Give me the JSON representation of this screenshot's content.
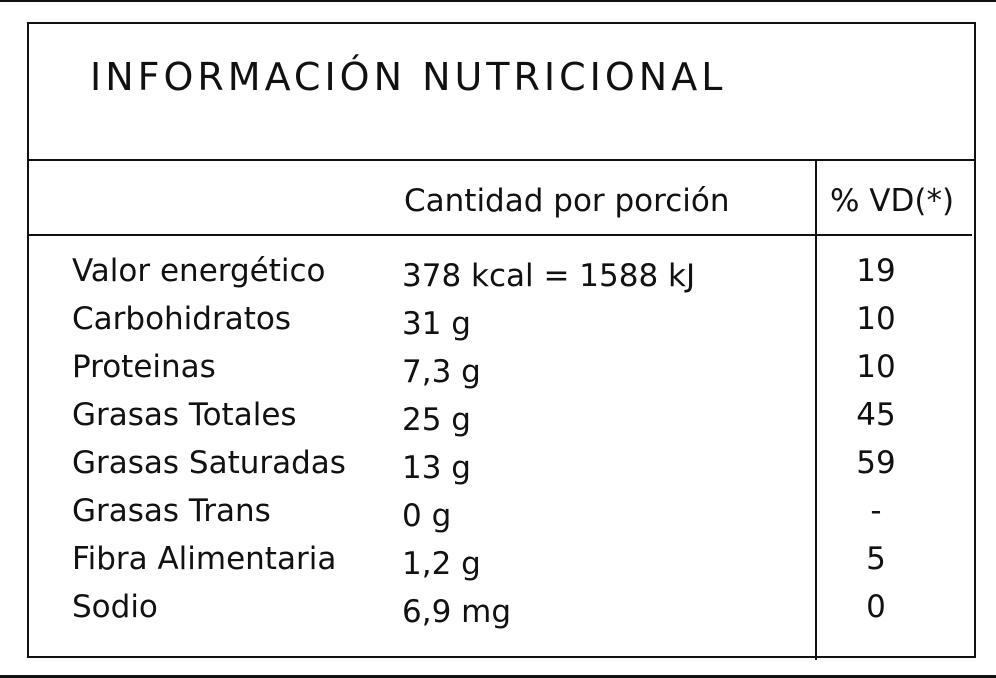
{
  "header": {
    "title": "INFORMACIÓN NUTRICIONAL"
  },
  "table": {
    "columns": {
      "amount": "Cantidad por porción",
      "dv": "% VD(*)"
    },
    "rows": [
      [
        "Valor energético",
        "378 kcal = 1588 kJ",
        "19"
      ],
      [
        "Carbohidratos",
        "31 g",
        "10"
      ],
      [
        "Proteinas",
        "7,3 g",
        "10"
      ],
      [
        "Grasas Totales",
        "25 g",
        "45"
      ],
      [
        "Grasas Saturadas",
        "13 g",
        "59"
      ],
      [
        "Grasas Trans",
        "0 g",
        "-"
      ],
      [
        "Fibra Alimentaria",
        "1,2 g",
        "5"
      ],
      [
        "Sodio",
        "6,9 mg",
        "0"
      ]
    ]
  }
}
